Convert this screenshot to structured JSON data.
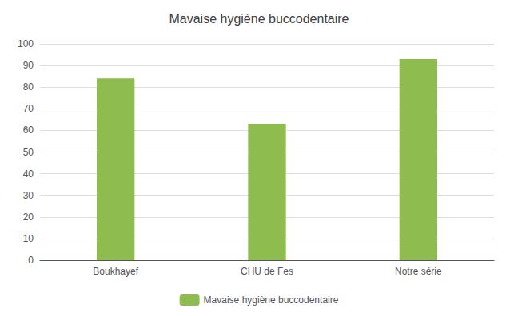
{
  "chart_data": {
    "type": "bar",
    "title": "Mavaise hygiène buccodentaire",
    "categories": [
      "Boukhayef",
      "CHU de Fes",
      "Notre série"
    ],
    "series": [
      {
        "name": "Mavaise hygiène buccodentaire",
        "color": "#8fbc4e",
        "values": [
          84,
          63,
          93
        ]
      }
    ],
    "ylim": [
      0,
      100
    ],
    "yticks": [
      0,
      10,
      20,
      30,
      40,
      50,
      60,
      70,
      80,
      90,
      100
    ],
    "grid": true,
    "legend": "bottom"
  }
}
